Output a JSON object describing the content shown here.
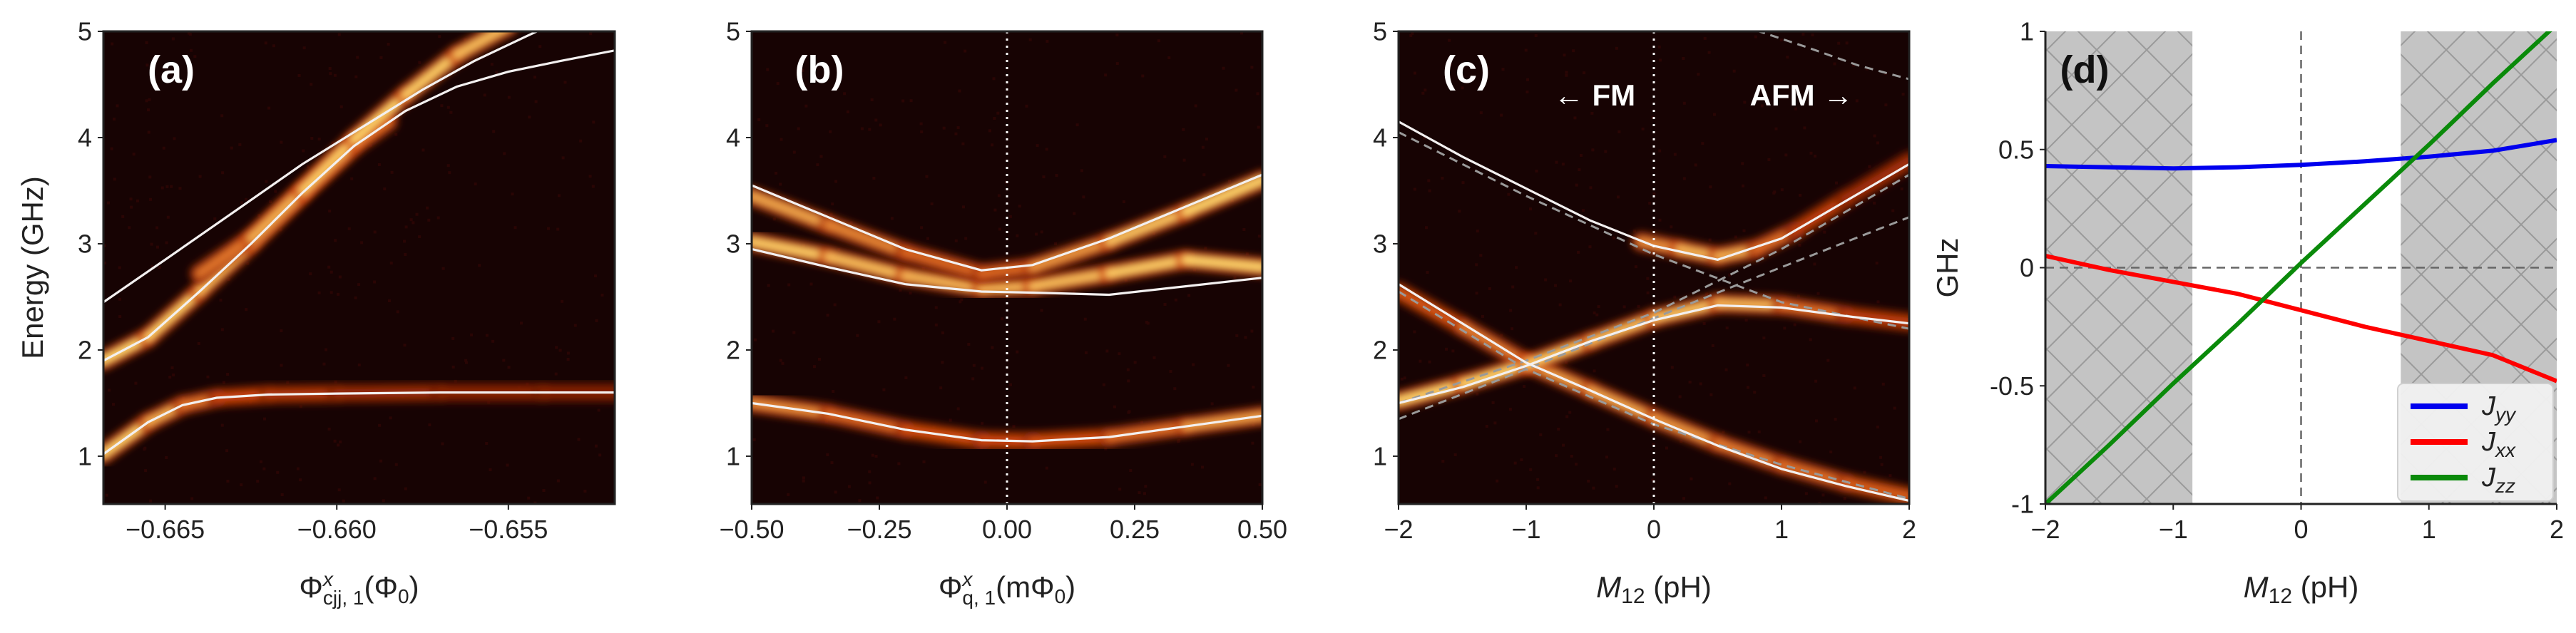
{
  "figure": {
    "panels": [
      "(a)",
      "(b)",
      "(c)",
      "(d)"
    ],
    "colors": {
      "heatmap_bg": "#170303",
      "heatmap_lo": "#5a0f02",
      "heatmap_mid": "#d2470c",
      "heatmap_hi": "#ffd56a",
      "fit_line": "#f3f0f0",
      "dashed": "#9a9a9a",
      "shade": "#c4c4c4",
      "Jyy": "#0000ee",
      "Jxx": "#ff0000",
      "Jzz": "#0a8a0a"
    }
  },
  "chart_data": [
    {
      "type": "heatmap",
      "label": "(a)",
      "ylabel": "Energy (GHz)",
      "xlabel_main": "Φ",
      "xlabel_sup": "x",
      "xlabel_sub": "cjj, 1",
      "xlabel_unit": "(Φ",
      "xlabel_unit_sub": "0",
      "xlabel_close": ")",
      "xlim": [
        -0.6668,
        -0.6519
      ],
      "ylim": [
        0.55,
        5.0
      ],
      "xticks": [
        -0.665,
        -0.66,
        -0.655
      ],
      "xtick_labels": [
        "−0.665",
        "−0.660",
        "−0.655"
      ],
      "yticks": [
        1,
        2,
        3,
        4,
        5
      ],
      "ytick_labels": [
        "1",
        "2",
        "3",
        "4",
        "5"
      ],
      "fit_lines": [
        {
          "name": "mode-low",
          "x": [
            -0.6668,
            -0.6655,
            -0.6645,
            -0.6635,
            -0.662,
            -0.66,
            -0.657,
            -0.654,
            -0.6519
          ],
          "y": [
            1.02,
            1.32,
            1.48,
            1.55,
            1.58,
            1.59,
            1.6,
            1.6,
            1.6
          ]
        },
        {
          "name": "mode-mid",
          "x": [
            -0.6668,
            -0.6655,
            -0.664,
            -0.6625,
            -0.661,
            -0.6595,
            -0.658,
            -0.6565,
            -0.655,
            -0.6535,
            -0.6519
          ],
          "y": [
            1.9,
            2.12,
            2.55,
            3.0,
            3.48,
            3.92,
            4.25,
            4.48,
            4.62,
            4.72,
            4.82
          ]
        },
        {
          "name": "mode-high",
          "x": [
            -0.6668,
            -0.665,
            -0.663,
            -0.661,
            -0.659,
            -0.6575,
            -0.656,
            -0.6545,
            -0.6535
          ],
          "y": [
            2.45,
            2.85,
            3.3,
            3.75,
            4.15,
            4.45,
            4.72,
            4.95,
            5.1
          ]
        }
      ],
      "bright_bands": [
        {
          "name": "band-low",
          "x": [
            -0.6668,
            -0.6655,
            -0.6645,
            -0.6635,
            -0.662,
            -0.66,
            -0.657,
            -0.654,
            -0.6519
          ],
          "y": [
            1.02,
            1.32,
            1.48,
            1.55,
            1.58,
            1.59,
            1.6,
            1.6,
            1.6
          ],
          "intensity": [
            1.0,
            0.95,
            0.8,
            0.6,
            0.45,
            0.35,
            0.25,
            0.2,
            0.2
          ]
        },
        {
          "name": "band-mid",
          "x": [
            -0.6668,
            -0.6655,
            -0.664,
            -0.6625,
            -0.661,
            -0.6595,
            -0.6585
          ],
          "y": [
            1.9,
            2.12,
            2.55,
            3.0,
            3.48,
            3.92,
            4.15
          ],
          "intensity": [
            1.0,
            1.0,
            0.95,
            0.9,
            0.85,
            0.8,
            0.6
          ]
        },
        {
          "name": "band-cross",
          "x": [
            -0.664,
            -0.6625,
            -0.661,
            -0.6595,
            -0.658,
            -0.6565,
            -0.655
          ],
          "y": [
            2.72,
            3.05,
            3.5,
            3.98,
            4.4,
            4.78,
            5.05
          ],
          "intensity": [
            0.6,
            0.8,
            0.95,
            1.0,
            1.0,
            0.95,
            0.9
          ]
        }
      ]
    },
    {
      "type": "heatmap",
      "label": "(b)",
      "xlabel_main": "Φ",
      "xlabel_sup": "x",
      "xlabel_sub": "q, 1",
      "xlabel_unit": "(mΦ",
      "xlabel_unit_sub": "0",
      "xlabel_close": ")",
      "xlim": [
        -0.5,
        0.5
      ],
      "ylim": [
        0.55,
        5.0
      ],
      "xticks": [
        -0.5,
        -0.25,
        0.0,
        0.25,
        0.5
      ],
      "xtick_labels": [
        "−0.50",
        "−0.25",
        "0.00",
        "0.25",
        "0.50"
      ],
      "yticks": [
        1,
        2,
        3,
        4,
        5
      ],
      "ytick_labels": [
        "1",
        "2",
        "3",
        "4",
        "5"
      ],
      "vline_x": 0.0,
      "fit_lines": [
        {
          "name": "mode-low",
          "x": [
            -0.5,
            -0.35,
            -0.2,
            -0.05,
            0.05,
            0.2,
            0.35,
            0.5
          ],
          "y": [
            1.5,
            1.4,
            1.25,
            1.15,
            1.14,
            1.18,
            1.28,
            1.38
          ]
        },
        {
          "name": "mode-mid",
          "x": [
            -0.5,
            -0.35,
            -0.2,
            -0.05,
            0.05,
            0.2,
            0.35,
            0.5
          ],
          "y": [
            2.95,
            2.78,
            2.62,
            2.55,
            2.54,
            2.52,
            2.6,
            2.68
          ]
        },
        {
          "name": "mode-high",
          "x": [
            -0.5,
            -0.35,
            -0.2,
            -0.05,
            0.05,
            0.2,
            0.35,
            0.5
          ],
          "y": [
            3.55,
            3.25,
            2.95,
            2.75,
            2.8,
            3.05,
            3.35,
            3.65
          ]
        }
      ],
      "bright_bands": [
        {
          "name": "band-low",
          "x": [
            -0.5,
            -0.35,
            -0.2,
            -0.05,
            0.05,
            0.2,
            0.35,
            0.5
          ],
          "y": [
            1.5,
            1.4,
            1.25,
            1.15,
            1.14,
            1.18,
            1.28,
            1.38
          ],
          "intensity": [
            0.85,
            0.7,
            0.6,
            0.55,
            0.55,
            0.6,
            0.75,
            0.9
          ]
        },
        {
          "name": "band-mid",
          "x": [
            -0.5,
            -0.35,
            -0.2,
            -0.05,
            0.05,
            0.2,
            0.35,
            0.5
          ],
          "y": [
            3.02,
            2.88,
            2.7,
            2.58,
            2.6,
            2.72,
            2.85,
            2.78
          ],
          "intensity": [
            1.0,
            0.95,
            0.9,
            0.9,
            0.9,
            0.95,
            1.0,
            1.0
          ]
        },
        {
          "name": "band-high",
          "x": [
            -0.5,
            -0.35,
            -0.2,
            -0.05,
            0.05,
            0.2,
            0.35,
            0.5
          ],
          "y": [
            3.45,
            3.18,
            2.92,
            2.72,
            2.78,
            3.02,
            3.3,
            3.6
          ],
          "intensity": [
            0.9,
            0.8,
            0.7,
            0.6,
            0.7,
            0.9,
            1.0,
            1.0
          ]
        }
      ]
    },
    {
      "type": "heatmap",
      "label": "(c)",
      "xlabel_main": "M",
      "xlabel_sub": "12",
      "xlabel_unit": "(pH)",
      "xlim": [
        -2,
        2
      ],
      "ylim": [
        0.55,
        5.0
      ],
      "xticks": [
        -2,
        -1,
        0,
        1,
        2
      ],
      "xtick_labels": [
        "−2",
        "−1",
        "0",
        "1",
        "2"
      ],
      "yticks": [
        1,
        2,
        3,
        4,
        5
      ],
      "ytick_labels": [
        "1",
        "2",
        "3",
        "4",
        "5"
      ],
      "vline_x": 0.0,
      "annotation_fm": "←  FM",
      "annotation_afm": "AFM  →",
      "fit_lines": [
        {
          "name": "mode-1",
          "x": [
            -2,
            -1.5,
            -1,
            -0.5,
            0,
            0.5,
            1,
            1.5,
            2
          ],
          "y": [
            2.62,
            2.25,
            1.88,
            1.62,
            1.35,
            1.1,
            0.88,
            0.72,
            0.58
          ]
        },
        {
          "name": "mode-2",
          "x": [
            -2,
            -1.5,
            -1,
            -0.5,
            0,
            0.5,
            1,
            1.5,
            2
          ],
          "y": [
            1.5,
            1.65,
            1.85,
            2.08,
            2.28,
            2.42,
            2.4,
            2.32,
            2.25
          ]
        },
        {
          "name": "mode-3",
          "x": [
            -2,
            -1.5,
            -1,
            -0.5,
            0,
            0.5,
            1,
            1.5,
            2
          ],
          "y": [
            4.15,
            3.82,
            3.52,
            3.22,
            2.98,
            2.85,
            3.05,
            3.4,
            3.75
          ]
        }
      ],
      "dashed_lines": [
        {
          "name": "uncoupled-1",
          "x": [
            -2,
            -1,
            0,
            1,
            2
          ],
          "y": [
            2.55,
            1.82,
            1.3,
            0.92,
            0.6
          ]
        },
        {
          "name": "uncoupled-2",
          "x": [
            -2,
            -1,
            0,
            1,
            2
          ],
          "y": [
            1.35,
            1.82,
            2.3,
            2.78,
            3.25
          ]
        },
        {
          "name": "uncoupled-3",
          "x": [
            -2,
            -1,
            0,
            1,
            2
          ],
          "y": [
            4.05,
            3.45,
            2.9,
            2.45,
            2.2
          ]
        },
        {
          "name": "uncoupled-4",
          "x": [
            -2,
            -1,
            0,
            1,
            2
          ],
          "y": [
            1.5,
            1.9,
            2.35,
            2.95,
            3.65
          ]
        },
        {
          "name": "uncoupled-5",
          "x": [
            0.7,
            1.2,
            1.6,
            2.0
          ],
          "y": [
            5.05,
            4.85,
            4.68,
            4.55
          ]
        }
      ],
      "bright_bands": [
        {
          "name": "band-1",
          "x": [
            -2,
            -1.5,
            -1,
            -0.5,
            0,
            0.5,
            1,
            1.5,
            2
          ],
          "y": [
            2.55,
            2.22,
            1.88,
            1.62,
            1.36,
            1.12,
            0.92,
            0.75,
            0.62
          ],
          "intensity": [
            0.55,
            0.65,
            0.8,
            0.85,
            0.85,
            0.75,
            0.7,
            0.65,
            0.6
          ]
        },
        {
          "name": "band-2",
          "x": [
            -2,
            -1.5,
            -1,
            -0.5,
            0,
            0.5,
            1,
            1.5,
            2
          ],
          "y": [
            1.52,
            1.68,
            1.86,
            2.08,
            2.3,
            2.44,
            2.42,
            2.33,
            2.26
          ],
          "intensity": [
            1.0,
            1.0,
            1.0,
            0.95,
            0.9,
            1.0,
            0.8,
            0.55,
            0.4
          ]
        },
        {
          "name": "band-3",
          "x": [
            -0.1,
            0.2,
            0.5,
            0.8,
            1.1,
            1.5,
            2
          ],
          "y": [
            3.02,
            2.95,
            2.88,
            2.95,
            3.12,
            3.42,
            3.78
          ],
          "intensity": [
            0.7,
            0.85,
            0.95,
            0.8,
            0.55,
            0.4,
            0.3
          ]
        }
      ]
    },
    {
      "type": "line",
      "label": "(d)",
      "ylabel": "GHz",
      "xlabel_main": "M",
      "xlabel_sub": "12",
      "xlabel_unit": "(pH)",
      "xlim": [
        -2,
        2
      ],
      "ylim": [
        -1,
        1
      ],
      "xticks": [
        -2,
        -1,
        0,
        1,
        2
      ],
      "xtick_labels": [
        "−2",
        "−1",
        "0",
        "1",
        "2"
      ],
      "yticks": [
        -1,
        -0.5,
        0,
        0.5,
        1
      ],
      "ytick_labels": [
        "-1",
        "-0.5",
        "0",
        "0.5",
        "1"
      ],
      "shaded_regions": [
        [
          -2,
          -0.85
        ],
        [
          0.78,
          2
        ]
      ],
      "vline_x": 0,
      "hline_y": 0,
      "series": [
        {
          "name": "J",
          "sub": "yy",
          "color": "#0000ee",
          "x": [
            -2,
            -1.5,
            -1,
            -0.5,
            0,
            0.5,
            1,
            1.5,
            2
          ],
          "y": [
            0.43,
            0.425,
            0.42,
            0.425,
            0.435,
            0.45,
            0.47,
            0.495,
            0.54
          ]
        },
        {
          "name": "J",
          "sub": "xx",
          "color": "#ff0000",
          "x": [
            -2,
            -1.5,
            -1,
            -0.5,
            0,
            0.5,
            1,
            1.5,
            2
          ],
          "y": [
            0.05,
            -0.01,
            -0.06,
            -0.11,
            -0.18,
            -0.25,
            -0.31,
            -0.37,
            -0.48
          ]
        },
        {
          "name": "J",
          "sub": "zz",
          "color": "#0a8a0a",
          "x": [
            -2,
            -1.5,
            -1,
            -0.5,
            0,
            0.5,
            1,
            1.5,
            2
          ],
          "y": [
            -1.0,
            -0.75,
            -0.49,
            -0.24,
            0.02,
            0.27,
            0.52,
            0.78,
            1.03
          ]
        }
      ]
    }
  ]
}
